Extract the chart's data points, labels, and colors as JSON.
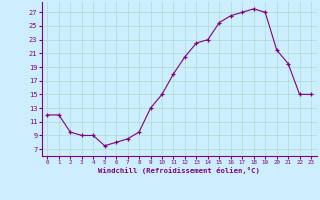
{
  "x": [
    0,
    1,
    2,
    3,
    4,
    5,
    6,
    7,
    8,
    9,
    10,
    11,
    12,
    13,
    14,
    15,
    16,
    17,
    18,
    19,
    20,
    21,
    22,
    23
  ],
  "y": [
    12,
    12,
    9.5,
    9,
    9,
    7.5,
    8,
    8.5,
    9.5,
    13,
    15,
    18,
    20.5,
    22.5,
    23,
    25.5,
    26.5,
    27,
    27.5,
    27,
    21.5,
    19.5,
    15,
    15
  ],
  "line_color": "#800080",
  "marker": "+",
  "bg_color": "#cceeff",
  "grid_color": "#aaddcc",
  "xlabel": "Windchill (Refroidissement éolien,°C)",
  "xlabel_color": "#800080",
  "yticks": [
    7,
    9,
    11,
    13,
    15,
    17,
    19,
    21,
    23,
    25,
    27
  ],
  "xticks": [
    0,
    1,
    2,
    3,
    4,
    5,
    6,
    7,
    8,
    9,
    10,
    11,
    12,
    13,
    14,
    15,
    16,
    17,
    18,
    19,
    20,
    21,
    22,
    23
  ],
  "ylim": [
    6.0,
    28.5
  ],
  "xlim": [
    -0.5,
    23.5
  ]
}
